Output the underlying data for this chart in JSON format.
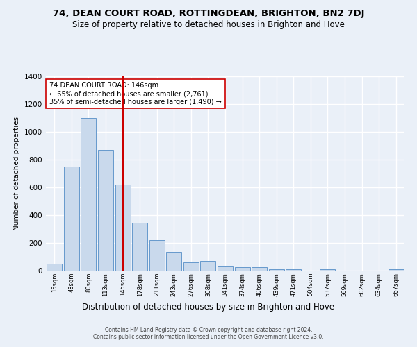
{
  "title": "74, DEAN COURT ROAD, ROTTINGDEAN, BRIGHTON, BN2 7DJ",
  "subtitle": "Size of property relative to detached houses in Brighton and Hove",
  "xlabel": "Distribution of detached houses by size in Brighton and Hove",
  "ylabel": "Number of detached properties",
  "footer1": "Contains HM Land Registry data © Crown copyright and database right 2024.",
  "footer2": "Contains public sector information licensed under the Open Government Licence v3.0.",
  "categories": [
    "15sqm",
    "48sqm",
    "80sqm",
    "113sqm",
    "145sqm",
    "178sqm",
    "211sqm",
    "243sqm",
    "276sqm",
    "308sqm",
    "341sqm",
    "374sqm",
    "406sqm",
    "439sqm",
    "471sqm",
    "504sqm",
    "537sqm",
    "569sqm",
    "602sqm",
    "634sqm",
    "667sqm"
  ],
  "values": [
    50,
    750,
    1100,
    870,
    620,
    345,
    220,
    135,
    60,
    70,
    30,
    25,
    25,
    12,
    10,
    0,
    10,
    0,
    0,
    0,
    10
  ],
  "bar_color": "#c9d9ec",
  "bar_edge_color": "#6699cc",
  "vline_x": 4,
  "vline_color": "#cc0000",
  "annotation_text": "74 DEAN COURT ROAD: 146sqm\n← 65% of detached houses are smaller (2,761)\n35% of semi-detached houses are larger (1,490) →",
  "annotation_box_color": "#ffffff",
  "annotation_box_edge": "#cc0000",
  "ylim": [
    0,
    1400
  ],
  "yticks": [
    0,
    200,
    400,
    600,
    800,
    1000,
    1200,
    1400
  ],
  "bg_color": "#eaf0f8",
  "plot_bg_color": "#eaf0f8",
  "grid_color": "#ffffff",
  "title_fontsize": 9.5,
  "subtitle_fontsize": 8.5
}
